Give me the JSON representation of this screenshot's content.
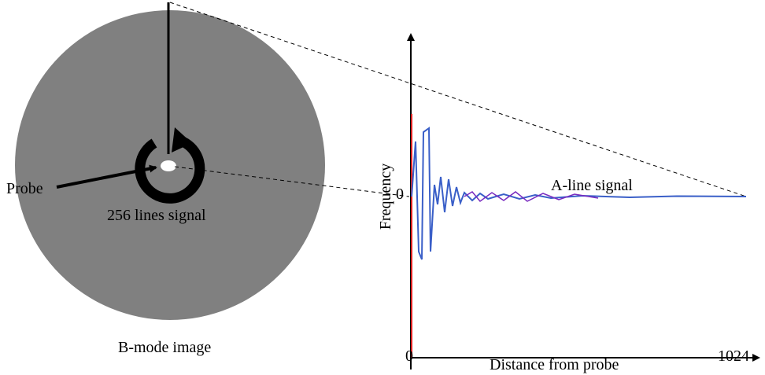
{
  "b_mode": {
    "probe_label": "Probe",
    "lines_label": "256 lines signal",
    "caption": "B-mode image"
  },
  "a_line": {
    "y_axis_label": "Frequency",
    "y_zero": "0",
    "signal_label": "A-line signal",
    "x_start": "0",
    "x_end": "1024",
    "x_axis_label": "Distance from probe"
  }
}
